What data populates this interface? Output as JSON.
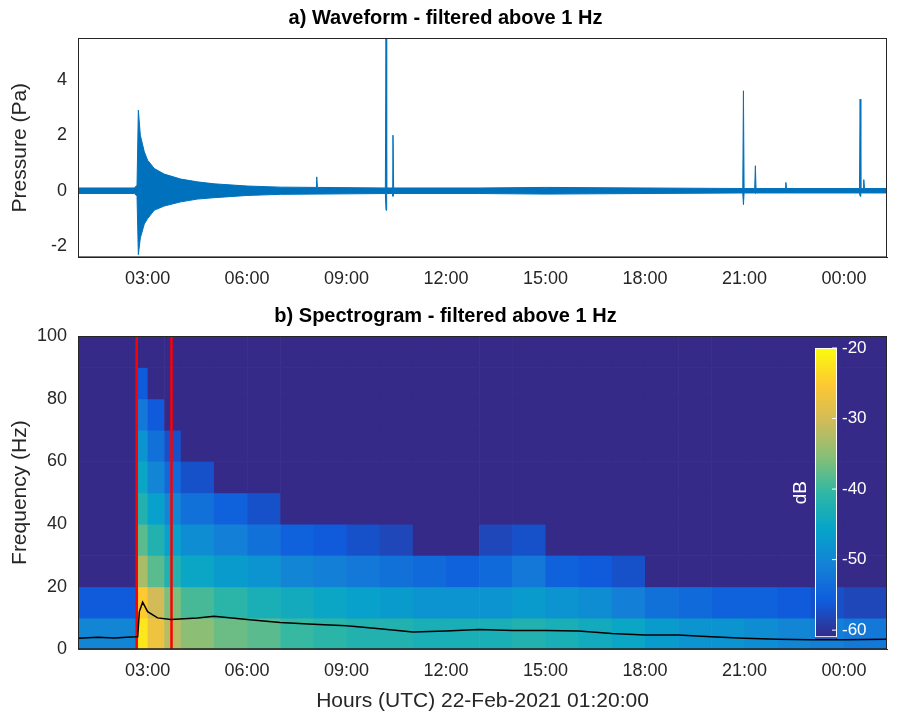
{
  "chart_data": [
    {
      "type": "band",
      "title": "a) Waveform - filtered above 1 Hz",
      "y_label": "Pressure (Pa)",
      "x": [
        0.9,
        2.6,
        2.68,
        2.72,
        2.78,
        2.9,
        3.0,
        3.2,
        3.5,
        4.0,
        4.5,
        5.0,
        6.0,
        7.0,
        8.08,
        8.1,
        8.12,
        10.17,
        10.19,
        10.21,
        10.38,
        10.4,
        10.42,
        13.0,
        15.0,
        18.0,
        20.95,
        20.97,
        20.99,
        21.31,
        21.33,
        21.35,
        22.23,
        22.25,
        22.27,
        24.47,
        24.49,
        24.51,
        24.58,
        24.6,
        24.62,
        25.3
      ],
      "series": [
        {
          "color": "#0072bd",
          "values": [
            0.1,
            0.1,
            0.2,
            2.9,
            2.0,
            1.4,
            1.1,
            0.8,
            0.6,
            0.42,
            0.32,
            0.25,
            0.17,
            0.13,
            0.12,
            0.5,
            0.12,
            0.1,
            5.5,
            0.1,
            0.1,
            2.0,
            0.1,
            0.1,
            0.12,
            0.1,
            0.08,
            3.6,
            0.08,
            0.08,
            0.9,
            0.08,
            0.08,
            0.3,
            0.08,
            0.08,
            3.3,
            0.08,
            0.08,
            0.4,
            0.08,
            0.08
          ]
        },
        {
          "color": "#0072bd",
          "values": [
            -0.1,
            -0.1,
            -0.2,
            -2.3,
            -1.7,
            -1.2,
            -1.0,
            -0.7,
            -0.55,
            -0.4,
            -0.3,
            -0.25,
            -0.17,
            -0.13,
            -0.12,
            -0.12,
            -0.12,
            -0.1,
            -0.7,
            -0.1,
            -0.1,
            -0.2,
            -0.1,
            -0.1,
            -0.12,
            -0.1,
            -0.08,
            -0.5,
            -0.08,
            -0.08,
            -0.1,
            -0.08,
            -0.08,
            -0.08,
            -0.08,
            -0.08,
            -0.2,
            -0.08,
            -0.08,
            -0.08,
            -0.08,
            -0.08
          ]
        }
      ],
      "xlim": [
        0.9,
        25.3
      ],
      "xticks": [
        {
          "value": 3,
          "label": "03:00"
        },
        {
          "value": 6,
          "label": "06:00"
        },
        {
          "value": 9,
          "label": "09:00"
        },
        {
          "value": 12,
          "label": "12:00"
        },
        {
          "value": 15,
          "label": "15:00"
        },
        {
          "value": 18,
          "label": "18:00"
        },
        {
          "value": 21,
          "label": "21:00"
        },
        {
          "value": 24,
          "label": "00:00"
        }
      ],
      "ylim": [
        -2.4,
        5.5
      ],
      "yticks": [
        -2,
        0,
        2,
        4
      ],
      "grid": false
    },
    {
      "type": "heatmap",
      "title": "b) Spectrogram - filtered above 1 Hz",
      "x_label": "Hours (UTC) 22-Feb-2021 01:20:00",
      "y_label": "Frequency (Hz)",
      "xlim": [
        0.9,
        25.3
      ],
      "xticks": [
        {
          "value": 3,
          "label": "03:00"
        },
        {
          "value": 6,
          "label": "06:00"
        },
        {
          "value": 9,
          "label": "09:00"
        },
        {
          "value": 12,
          "label": "12:00"
        },
        {
          "value": 15,
          "label": "15:00"
        },
        {
          "value": 18,
          "label": "18:00"
        },
        {
          "value": 21,
          "label": "21:00"
        },
        {
          "value": 24,
          "label": "00:00"
        }
      ],
      "ylim": [
        0,
        100
      ],
      "yticks": [
        0,
        20,
        40,
        60,
        80,
        100
      ],
      "grid": false,
      "time_edges": [
        0.9,
        2.7,
        3.0,
        3.5,
        4,
        5,
        6,
        7,
        8,
        9,
        10,
        11,
        12,
        13,
        14,
        15,
        16,
        17,
        18,
        19,
        20,
        21,
        22,
        23,
        24,
        25.3
      ],
      "frequency_edges": [
        0,
        10,
        20,
        30,
        40,
        50,
        60,
        70,
        80,
        90,
        100
      ],
      "cells": [
        [
          -50,
          -56,
          -61,
          -61,
          -61,
          -61,
          -61,
          -61,
          -61,
          -61
        ],
        [
          -22,
          -25,
          -33,
          -38,
          -42,
          -45,
          -48,
          -52,
          -56,
          -61
        ],
        [
          -27,
          -30,
          -38,
          -42,
          -46,
          -50,
          -53,
          -56,
          -61,
          -61
        ],
        [
          -32,
          -36,
          -42,
          -46,
          -50,
          -54,
          -57,
          -61,
          -61,
          -61
        ],
        [
          -35,
          -39,
          -45,
          -49,
          -53,
          -57,
          -61,
          -61,
          -61,
          -61
        ],
        [
          -37,
          -41,
          -47,
          -51,
          -55,
          -61,
          -61,
          -61,
          -61,
          -61
        ],
        [
          -38,
          -43,
          -48,
          -53,
          -57,
          -61,
          -61,
          -61,
          -61,
          -61
        ],
        [
          -40,
          -44,
          -50,
          -55,
          -61,
          -61,
          -61,
          -61,
          -61,
          -61
        ],
        [
          -41,
          -45,
          -51,
          -56,
          -61,
          -61,
          -61,
          -61,
          -61,
          -61
        ],
        [
          -42,
          -46,
          -52,
          -57,
          -61,
          -61,
          -61,
          -61,
          -61,
          -61
        ],
        [
          -42,
          -47,
          -53,
          -58,
          -61,
          -61,
          -61,
          -61,
          -61,
          -61
        ],
        [
          -43,
          -48,
          -54,
          -61,
          -61,
          -61,
          -61,
          -61,
          -61,
          -61
        ],
        [
          -43,
          -48,
          -55,
          -61,
          -61,
          -61,
          -61,
          -61,
          -61,
          -61
        ],
        [
          -43,
          -48,
          -54,
          -58,
          -61,
          -61,
          -61,
          -61,
          -61,
          -61
        ],
        [
          -42,
          -47,
          -52,
          -57,
          -61,
          -61,
          -61,
          -61,
          -61,
          -61
        ],
        [
          -43,
          -48,
          -55,
          -61,
          -61,
          -61,
          -61,
          -61,
          -61,
          -61
        ],
        [
          -44,
          -49,
          -56,
          -61,
          -61,
          -61,
          -61,
          -61,
          -61,
          -61
        ],
        [
          -45,
          -51,
          -57,
          -61,
          -61,
          -61,
          -61,
          -61,
          -61,
          -61
        ],
        [
          -47,
          -53,
          -61,
          -61,
          -61,
          -61,
          -61,
          -61,
          -61,
          -61
        ],
        [
          -48,
          -54,
          -61,
          -61,
          -61,
          -61,
          -61,
          -61,
          -61,
          -61
        ],
        [
          -48,
          -55,
          -61,
          -61,
          -61,
          -61,
          -61,
          -61,
          -61,
          -61
        ],
        [
          -49,
          -55,
          -61,
          -61,
          -61,
          -61,
          -61,
          -61,
          -61,
          -61
        ],
        [
          -50,
          -56,
          -61,
          -61,
          -61,
          -61,
          -61,
          -61,
          -61,
          -61
        ],
        [
          -51,
          -57,
          -61,
          -61,
          -61,
          -61,
          -61,
          -61,
          -61,
          -61
        ],
        [
          -52,
          -58,
          -61,
          -61,
          -61,
          -61,
          -61,
          -61,
          -61,
          -61
        ]
      ],
      "color_range": [
        -61,
        -20
      ],
      "color_ticks": [
        -60,
        -50,
        -40,
        -30,
        -20
      ],
      "colorbar_label": "dB",
      "vertical_lines": {
        "x": [
          2.67,
          3.72
        ],
        "color": "#ff0000"
      },
      "series": [
        {
          "type": "line",
          "color": "#000000",
          "x": [
            0.9,
            1.5,
            2.0,
            2.5,
            2.7,
            2.75,
            2.85,
            3.0,
            3.3,
            3.7,
            4.5,
            5.0,
            6.0,
            7.0,
            8.0,
            9,
            10,
            11,
            12,
            13,
            14,
            15,
            16,
            17,
            18,
            19,
            20,
            21,
            22,
            23,
            24,
            25.3
          ],
          "values": [
            3.5,
            3.8,
            3.6,
            3.9,
            4,
            12,
            15,
            12,
            10,
            9.5,
            10,
            10.5,
            9.5,
            8.5,
            8,
            7.5,
            6.5,
            5.5,
            5.8,
            6.3,
            6,
            6,
            5.8,
            5,
            4.5,
            4.5,
            4,
            3.5,
            3.2,
            3,
            3,
            3.2
          ]
        }
      ]
    }
  ]
}
